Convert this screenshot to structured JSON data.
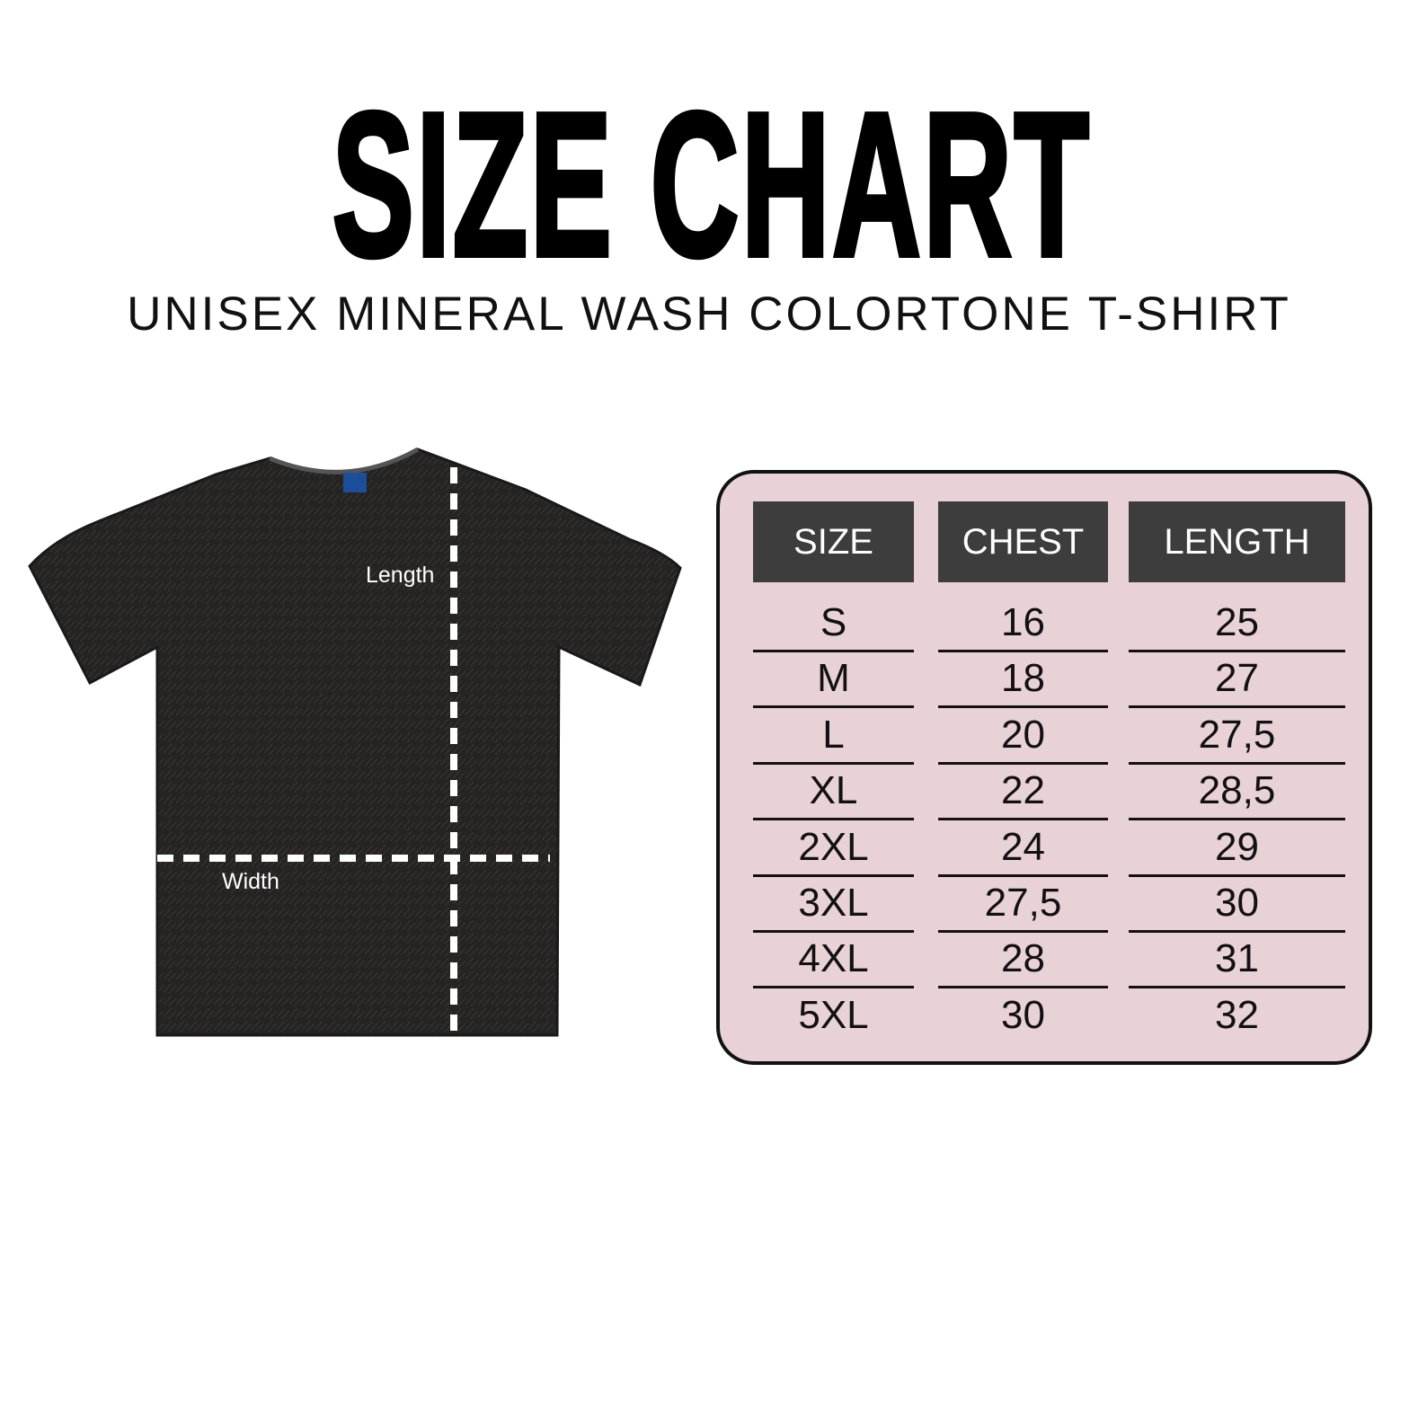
{
  "header": {
    "title": "SIZE CHART",
    "subtitle": "UNISEX MINERAL WASH COLORTONE T-SHIRT"
  },
  "shirt_diagram": {
    "length_label": "Length",
    "width_label": "Width",
    "shirt_color": "#262323",
    "dash_color": "#ffffff"
  },
  "size_table": {
    "background_color": "#e8d2d6",
    "header_color": "#3d3d3d",
    "columns": [
      "SIZE",
      "CHEST",
      "LENGTH"
    ],
    "rows": [
      [
        "S",
        "16",
        "25"
      ],
      [
        "M",
        "18",
        "27"
      ],
      [
        "L",
        "20",
        "27,5"
      ],
      [
        "XL",
        "22",
        "28,5"
      ],
      [
        "2XL",
        "24",
        "29"
      ],
      [
        "3XL",
        "27,5",
        "30"
      ],
      [
        "4XL",
        "28",
        "31"
      ],
      [
        "5XL",
        "30",
        "32"
      ]
    ]
  }
}
